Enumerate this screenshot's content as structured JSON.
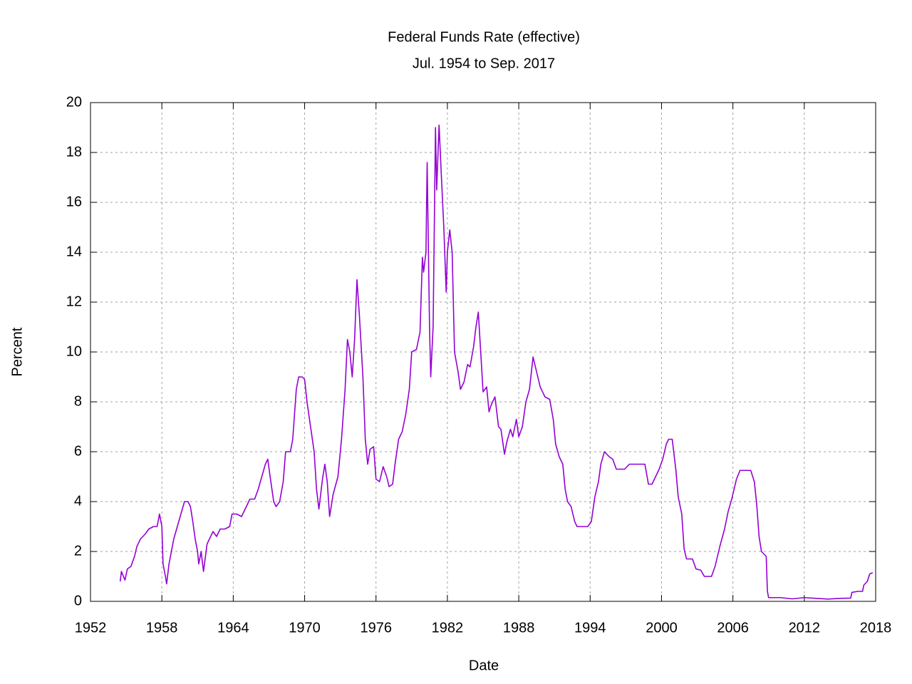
{
  "chart_data": {
    "type": "line",
    "title": "Federal Funds Rate (effective)",
    "subtitle": "Jul. 1954 to Sep. 2017",
    "x_label": "Date",
    "y_label": "Percent",
    "xlim": [
      1952,
      2018
    ],
    "xticks": [
      1952,
      1958,
      1964,
      1970,
      1976,
      1982,
      1988,
      1994,
      2000,
      2006,
      2012,
      2018
    ],
    "ylim": [
      0,
      20
    ],
    "yticks": [
      0,
      2,
      4,
      6,
      8,
      10,
      12,
      14,
      16,
      18,
      20
    ],
    "grid": true,
    "x": [
      1954.5,
      1954.6,
      1954.9,
      1955.1,
      1955.4,
      1955.7,
      1955.9,
      1956.2,
      1956.6,
      1956.9,
      1957.3,
      1957.6,
      1957.8,
      1958.0,
      1958.1,
      1958.3,
      1958.4,
      1958.6,
      1958.8,
      1959.0,
      1959.3,
      1959.6,
      1959.9,
      1960.2,
      1960.4,
      1960.6,
      1960.8,
      1961.0,
      1961.1,
      1961.3,
      1961.5,
      1961.8,
      1962.0,
      1962.3,
      1962.6,
      1962.9,
      1963.3,
      1963.7,
      1963.9,
      1964.3,
      1964.7,
      1965.0,
      1965.4,
      1965.8,
      1966.1,
      1966.4,
      1966.7,
      1966.9,
      1967.1,
      1967.4,
      1967.6,
      1967.9,
      1968.2,
      1968.4,
      1968.8,
      1969.0,
      1969.3,
      1969.5,
      1969.8,
      1970.0,
      1970.2,
      1970.5,
      1970.8,
      1971.0,
      1971.2,
      1971.5,
      1971.7,
      1971.9,
      1972.1,
      1972.4,
      1972.8,
      1973.1,
      1973.4,
      1973.6,
      1973.8,
      1974.0,
      1974.2,
      1974.4,
      1974.6,
      1974.9,
      1975.1,
      1975.3,
      1975.5,
      1975.8,
      1976.0,
      1976.3,
      1976.6,
      1976.9,
      1977.1,
      1977.4,
      1977.6,
      1977.9,
      1978.2,
      1978.5,
      1978.8,
      1979.0,
      1979.4,
      1979.7,
      1979.9,
      1980.0,
      1980.2,
      1980.3,
      1980.5,
      1980.6,
      1980.8,
      1980.9,
      1981.0,
      1981.1,
      1981.3,
      1981.5,
      1981.7,
      1981.9,
      1982.0,
      1982.2,
      1982.4,
      1982.6,
      1982.9,
      1983.1,
      1983.4,
      1983.7,
      1983.9,
      1984.2,
      1984.4,
      1984.6,
      1984.8,
      1985.0,
      1985.3,
      1985.5,
      1985.7,
      1986.0,
      1986.3,
      1986.5,
      1986.8,
      1987.0,
      1987.3,
      1987.5,
      1987.8,
      1988.0,
      1988.3,
      1988.6,
      1988.9,
      1989.2,
      1989.5,
      1989.8,
      1990.2,
      1990.6,
      1990.9,
      1991.1,
      1991.4,
      1991.7,
      1991.9,
      1992.1,
      1992.4,
      1992.7,
      1992.9,
      1993.3,
      1993.8,
      1994.1,
      1994.4,
      1994.7,
      1994.9,
      1995.2,
      1995.6,
      1995.9,
      1996.2,
      1996.6,
      1996.9,
      1997.3,
      1997.8,
      1998.2,
      1998.6,
      1998.9,
      1999.2,
      1999.5,
      1999.8,
      2000.1,
      2000.4,
      2000.6,
      2000.9,
      2001.2,
      2001.4,
      2001.7,
      2001.9,
      2002.1,
      2002.6,
      2002.9,
      2003.3,
      2003.6,
      2004.2,
      2004.5,
      2004.9,
      2005.3,
      2005.6,
      2005.9,
      2006.3,
      2006.6,
      2007.2,
      2007.5,
      2007.8,
      2008.0,
      2008.2,
      2008.4,
      2008.8,
      2008.9,
      2009.0,
      2010.0,
      2011.0,
      2012.0,
      2013.0,
      2014.0,
      2015.0,
      2015.9,
      2016.0,
      2016.5,
      2016.9,
      2017.0,
      2017.3,
      2017.5,
      2017.75
    ],
    "series": [
      {
        "color": "#9400d3",
        "values": [
          0.8,
          1.2,
          0.85,
          1.3,
          1.4,
          1.8,
          2.2,
          2.5,
          2.7,
          2.9,
          3.0,
          3.0,
          3.5,
          3.0,
          1.5,
          1.0,
          0.7,
          1.5,
          2.0,
          2.5,
          3.0,
          3.5,
          4.0,
          4.0,
          3.8,
          3.2,
          2.5,
          2.0,
          1.5,
          2.0,
          1.2,
          2.3,
          2.5,
          2.8,
          2.6,
          2.9,
          2.9,
          3.0,
          3.5,
          3.5,
          3.4,
          3.7,
          4.1,
          4.1,
          4.5,
          5.0,
          5.5,
          5.7,
          5.0,
          4.0,
          3.8,
          4.0,
          4.8,
          6.0,
          6.0,
          6.5,
          8.5,
          9.0,
          9.0,
          8.9,
          8.0,
          7.0,
          6.0,
          4.5,
          3.7,
          4.9,
          5.5,
          4.8,
          3.4,
          4.3,
          5.0,
          6.5,
          8.5,
          10.5,
          10.0,
          9.0,
          10.5,
          12.9,
          11.5,
          9.0,
          6.5,
          5.5,
          6.1,
          6.2,
          4.9,
          4.8,
          5.4,
          5.0,
          4.6,
          4.7,
          5.5,
          6.5,
          6.8,
          7.5,
          8.5,
          10.0,
          10.1,
          10.8,
          13.8,
          13.2,
          14.0,
          17.6,
          11.0,
          9.0,
          11.0,
          15.0,
          19.0,
          16.5,
          19.1,
          17.0,
          15.0,
          12.4,
          14.0,
          14.9,
          14.0,
          10.0,
          9.2,
          8.5,
          8.8,
          9.5,
          9.4,
          10.2,
          11.0,
          11.6,
          10.0,
          8.4,
          8.6,
          7.6,
          7.9,
          8.2,
          7.0,
          6.9,
          5.9,
          6.4,
          6.9,
          6.6,
          7.3,
          6.6,
          7.0,
          8.0,
          8.5,
          9.8,
          9.2,
          8.6,
          8.2,
          8.1,
          7.3,
          6.3,
          5.8,
          5.5,
          4.5,
          4.0,
          3.8,
          3.2,
          3.0,
          3.0,
          3.0,
          3.2,
          4.2,
          4.8,
          5.5,
          6.0,
          5.8,
          5.7,
          5.3,
          5.3,
          5.3,
          5.5,
          5.5,
          5.5,
          5.5,
          4.7,
          4.7,
          5.0,
          5.3,
          5.7,
          6.3,
          6.5,
          6.5,
          5.3,
          4.2,
          3.5,
          2.1,
          1.7,
          1.7,
          1.3,
          1.25,
          1.0,
          1.0,
          1.4,
          2.2,
          2.9,
          3.6,
          4.1,
          4.9,
          5.25,
          5.25,
          5.25,
          4.8,
          3.9,
          2.6,
          2.0,
          1.8,
          0.4,
          0.15,
          0.15,
          0.1,
          0.15,
          0.12,
          0.09,
          0.12,
          0.13,
          0.36,
          0.4,
          0.4,
          0.65,
          0.8,
          1.1,
          1.15
        ]
      }
    ]
  }
}
